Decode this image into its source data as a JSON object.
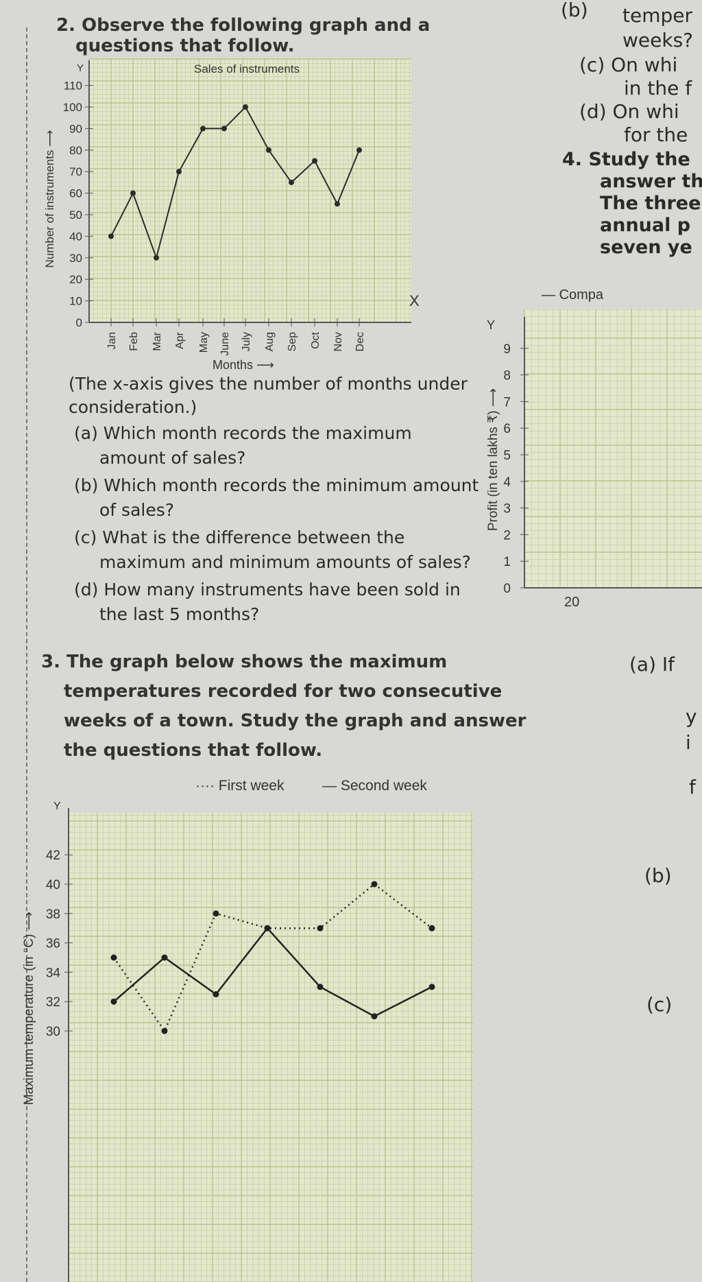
{
  "q2": {
    "heading": "2. Observe the following graph and a",
    "heading2": "questions that follow.",
    "note1": "(The x-axis gives the number of months under",
    "note2": "consideration.)",
    "a1": "(a) Which month records the maximum",
    "a2": "amount of sales?",
    "b1": "(b) Which month records the minimum amount",
    "b2": "of sales?",
    "c1": "(c) What is the difference between the",
    "c2": "maximum and minimum amounts of sales?",
    "d1": "(d) How many instruments have been sold in",
    "d2": "the last 5 months?"
  },
  "q3": {
    "l1": "3. The graph below shows the maximum",
    "l2": "temperatures recorded for two consecutive",
    "l3": "weeks of a town. Study the graph and answer",
    "l4": "the questions that follow."
  },
  "right": {
    "lines": [
      "(b)",
      "temper",
      "weeks?",
      "(c) On whi",
      "in the f",
      "(d) On whi",
      "for the",
      "4. Study the",
      "answer th",
      "The three",
      "annual p",
      "seven ye",
      "— Compa",
      "(a) If",
      "y",
      "i",
      "f",
      "(b)",
      "(c)"
    ]
  },
  "chart_data": [
    {
      "type": "line",
      "title": "Sales of instruments",
      "xlabel": "Months",
      "ylabel": "Number of instruments",
      "x_axis_letter": "X",
      "y_axis_letter": "Y",
      "categories": [
        "Jan",
        "Feb",
        "Mar",
        "Apr",
        "May",
        "June",
        "July",
        "Aug",
        "Sep",
        "Oct",
        "Nov",
        "Dec"
      ],
      "values": [
        40,
        60,
        30,
        70,
        90,
        90,
        100,
        80,
        65,
        75,
        55,
        80
      ],
      "yticks": [
        0,
        10,
        20,
        30,
        40,
        50,
        60,
        70,
        80,
        90,
        100,
        110
      ],
      "ylim": [
        0,
        115
      ],
      "grid": true,
      "colors": {
        "line": "#2b2b2b",
        "grid_bg": "#e3e7cc",
        "grid": "#b9c48f"
      }
    },
    {
      "type": "line",
      "ylabel": "Maximum temperature (in °C)",
      "y_axis_letter": "Y",
      "yticks": [
        30,
        32,
        34,
        36,
        38,
        40,
        42
      ],
      "ylim": [
        28.5,
        46
      ],
      "grid": true,
      "legend_placement": "top",
      "series": [
        {
          "name": "First week",
          "style": "dotted",
          "values": [
            35,
            30,
            38,
            37,
            37,
            40,
            37
          ]
        },
        {
          "name": "Second week",
          "style": "solid",
          "values": [
            32,
            35,
            32.5,
            37,
            33,
            31,
            33
          ]
        }
      ]
    },
    {
      "type": "line",
      "title": "Compa",
      "ylabel": "Profit (in ten lakhs ₹)",
      "y_axis_letter": "Y",
      "yticks": [
        0,
        1,
        2,
        3,
        4,
        5,
        6,
        7,
        8,
        9
      ],
      "xticks": [
        "20"
      ],
      "ylim": [
        0,
        10
      ],
      "grid": true
    }
  ]
}
